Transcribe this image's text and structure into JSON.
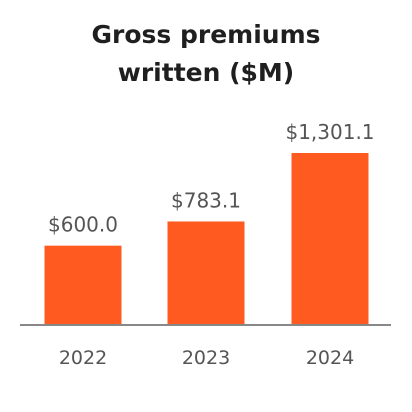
{
  "chart_data": {
    "type": "bar",
    "title_line1": "Gross premiums",
    "title_line2": "written ($M)",
    "xlabel": "",
    "ylabel": "",
    "categories": [
      "2022",
      "2023",
      "2024"
    ],
    "values": [
      600.0,
      783.1,
      1301.1
    ],
    "data_labels": [
      "$600.0",
      "$783.1",
      "$1,301.1"
    ],
    "ylim": [
      0,
      1301.1
    ],
    "grid": false,
    "legend": "none",
    "bar_color": "#FF5A1F",
    "axis_color": "#888888"
  }
}
